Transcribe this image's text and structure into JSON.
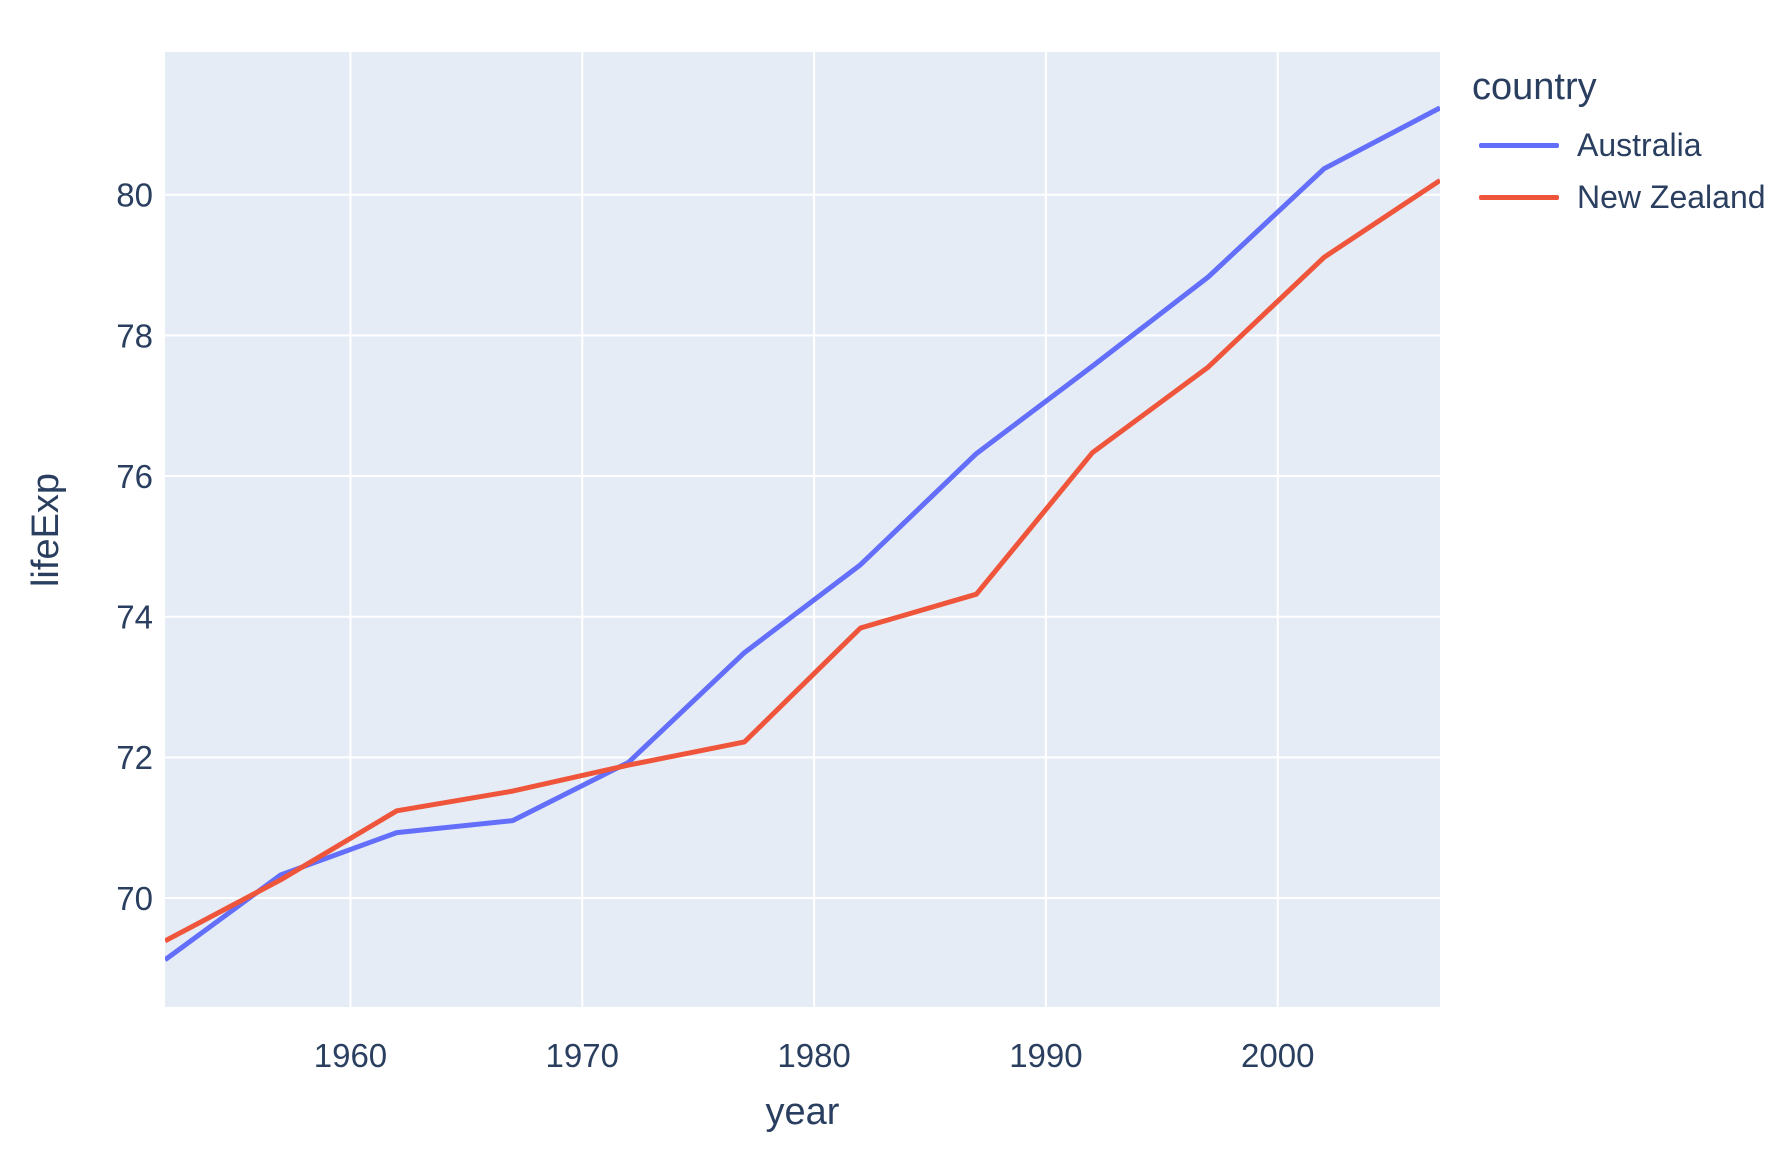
{
  "chart_data": {
    "type": "line",
    "title": "",
    "xlabel": "year",
    "ylabel": "lifeExp",
    "legend_title": "country",
    "x": [
      1952,
      1957,
      1962,
      1967,
      1972,
      1977,
      1982,
      1987,
      1992,
      1997,
      2002,
      2007
    ],
    "series": [
      {
        "name": "Australia",
        "color": "#636EFA",
        "values": [
          69.12,
          70.33,
          70.93,
          71.1,
          71.93,
          73.49,
          74.74,
          76.32,
          77.56,
          78.83,
          80.37,
          81.235
        ]
      },
      {
        "name": "New Zealand",
        "color": "#EF553B",
        "values": [
          69.39,
          70.26,
          71.24,
          71.52,
          71.89,
          72.22,
          73.84,
          74.32,
          76.33,
          77.55,
          79.11,
          80.204
        ]
      }
    ],
    "xlim": [
      1952,
      2007
    ],
    "ylim": [
      68.45,
      82.03
    ],
    "x_ticks": [
      1960,
      1970,
      1980,
      1990,
      2000
    ],
    "y_ticks": [
      70,
      72,
      74,
      76,
      78,
      80
    ],
    "grid": true,
    "legend_position": "right",
    "plot_bg": "#E5ECF6",
    "grid_color": "#FFFFFF",
    "text_color": "#2A3F5F",
    "tick_color": "#2A3F5F"
  }
}
